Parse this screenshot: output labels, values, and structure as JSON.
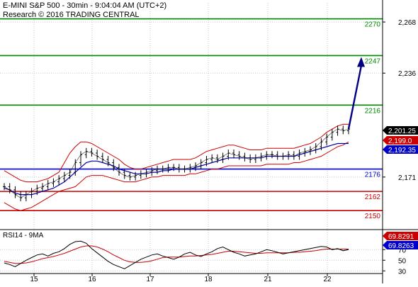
{
  "header": {
    "instrument_line": "E-MINI S&P 500 - 30min - 9:04:04 AM (UTC+2)",
    "source_line": "Research © 2016 TRADING CENTRAL"
  },
  "colors": {
    "price": "#000000",
    "band": "#cc0000",
    "ma": "#0000aa",
    "resistance": "#008800",
    "pivot": "#0000cc",
    "support": "#cc0000",
    "arrow": "#000080",
    "rsi": "#000000",
    "rsi_ma": "#cc0000",
    "grid": "#c8c8c8"
  },
  "chart_data": [
    {
      "type": "line",
      "panel": "price",
      "title": "",
      "x_tick_labels": [
        "15",
        "16",
        "17",
        "18",
        "21",
        "22"
      ],
      "y_tick_labels": [
        "2,268",
        "2,236",
        "2,171"
      ],
      "ylim": [
        2139,
        2280
      ],
      "grid": "dotted",
      "levels": [
        {
          "label": "2270",
          "value": 2270,
          "role": "resistance",
          "color": "#008800"
        },
        {
          "label": "2247",
          "value": 2247,
          "role": "resistance",
          "color": "#008800"
        },
        {
          "label": "2216",
          "value": 2216,
          "role": "resistance",
          "color": "#008800"
        },
        {
          "label": "2176",
          "value": 2176,
          "role": "pivot",
          "color": "#0000cc"
        },
        {
          "label": "2162",
          "value": 2162,
          "role": "support",
          "color": "#cc0000"
        },
        {
          "label": "2150",
          "value": 2150,
          "role": "support",
          "color": "#cc0000"
        }
      ],
      "value_tags": [
        {
          "label": "2,201.25",
          "value": 2201.25,
          "bg": "#000000",
          "fg": "#ffffff"
        },
        {
          "label": "2,199.0",
          "value": 2199.0,
          "bg": "#cc0000",
          "fg": "#ffffff"
        },
        {
          "label": "2,192.35",
          "value": 2192.35,
          "bg": "#0000cc",
          "fg": "#ffffff"
        }
      ],
      "close": [
        2165,
        2163,
        2160,
        2158,
        2160,
        2162,
        2164,
        2165,
        2167,
        2168,
        2170,
        2172,
        2174,
        2180,
        2185,
        2187,
        2186,
        2184,
        2182,
        2180,
        2177,
        2174,
        2172,
        2171,
        2172,
        2173,
        2174,
        2175,
        2176,
        2176,
        2177,
        2177,
        2176,
        2176,
        2177,
        2178,
        2180,
        2182,
        2183,
        2182,
        2184,
        2186,
        2185,
        2184,
        2183,
        2182,
        2183,
        2184,
        2185,
        2185,
        2184,
        2184,
        2185,
        2184,
        2186,
        2187,
        2188,
        2190,
        2193,
        2196,
        2199,
        2201,
        2200,
        2201
      ],
      "upper_band": [
        2175,
        2173,
        2171,
        2169,
        2168,
        2168,
        2168,
        2169,
        2170,
        2172,
        2174,
        2180,
        2186,
        2190,
        2193,
        2193,
        2192,
        2190,
        2188,
        2186,
        2184,
        2182,
        2179,
        2177,
        2176,
        2176,
        2177,
        2178,
        2179,
        2180,
        2181,
        2182,
        2182,
        2182,
        2182,
        2183,
        2185,
        2187,
        2188,
        2189,
        2190,
        2191,
        2191,
        2190,
        2189,
        2188,
        2188,
        2188,
        2189,
        2189,
        2189,
        2189,
        2189,
        2189,
        2190,
        2191,
        2192,
        2194,
        2196,
        2199,
        2201,
        2203,
        2204,
        2204
      ],
      "lower_band": [
        2155,
        2153,
        2151,
        2150,
        2151,
        2152,
        2154,
        2156,
        2158,
        2160,
        2162,
        2163,
        2164,
        2165,
        2168,
        2171,
        2172,
        2172,
        2172,
        2171,
        2170,
        2169,
        2168,
        2168,
        2168,
        2169,
        2170,
        2171,
        2171,
        2172,
        2172,
        2172,
        2172,
        2172,
        2173,
        2173,
        2174,
        2175,
        2176,
        2176,
        2177,
        2178,
        2178,
        2178,
        2178,
        2178,
        2178,
        2178,
        2179,
        2179,
        2179,
        2179,
        2179,
        2180,
        2180,
        2181,
        2182,
        2183,
        2184,
        2186,
        2188,
        2190,
        2191,
        2193
      ],
      "ma": [
        2164,
        2163,
        2161,
        2160,
        2160,
        2160,
        2161,
        2162,
        2163,
        2164,
        2166,
        2168,
        2171,
        2174,
        2177,
        2180,
        2181,
        2181,
        2180,
        2179,
        2178,
        2176,
        2175,
        2174,
        2173,
        2173,
        2173,
        2174,
        2174,
        2175,
        2175,
        2176,
        2176,
        2176,
        2176,
        2177,
        2178,
        2179,
        2180,
        2181,
        2182,
        2183,
        2183,
        2183,
        2183,
        2183,
        2183,
        2183,
        2184,
        2184,
        2184,
        2184,
        2184,
        2184,
        2185,
        2186,
        2187,
        2188,
        2189,
        2190,
        2191,
        2192,
        2192,
        2192
      ],
      "projection": {
        "from": 2201,
        "to": 2247
      }
    },
    {
      "type": "line",
      "panel": "rsi",
      "title": "RSI14 - 9MA",
      "y_tick_labels": [
        "30",
        "50",
        "70"
      ],
      "ylim": [
        25,
        105
      ],
      "value_tags": [
        {
          "label": "69.8291",
          "value": 69.8291,
          "bg": "#cc0000",
          "fg": "#ffffff"
        },
        {
          "label": "69.8263",
          "value": 69.8263,
          "bg": "#0000cc",
          "fg": "#ffffff"
        }
      ],
      "rsi": [
        45,
        42,
        38,
        44,
        50,
        55,
        60,
        62,
        58,
        63,
        66,
        72,
        80,
        85,
        86,
        82,
        72,
        64,
        56,
        48,
        42,
        38,
        34,
        40,
        46,
        52,
        56,
        60,
        62,
        58,
        55,
        52,
        56,
        62,
        65,
        60,
        57,
        62,
        66,
        72,
        75,
        70,
        65,
        62,
        58,
        60,
        62,
        66,
        70,
        68,
        65,
        62,
        64,
        66,
        68,
        70,
        72,
        74,
        76,
        75,
        70,
        72,
        68,
        70
      ],
      "rsi_ma": [
        48,
        46,
        44,
        44,
        45,
        47,
        50,
        53,
        55,
        57,
        60,
        63,
        67,
        71,
        75,
        77,
        77,
        75,
        71,
        66,
        60,
        55,
        50,
        47,
        46,
        46,
        47,
        49,
        52,
        55,
        56,
        56,
        56,
        57,
        58,
        58,
        59,
        60,
        61,
        63,
        65,
        67,
        67,
        66,
        65,
        64,
        63,
        63,
        64,
        64,
        64,
        64,
        64,
        65,
        65,
        66,
        67,
        68,
        70,
        71,
        71,
        71,
        71,
        71
      ]
    }
  ]
}
